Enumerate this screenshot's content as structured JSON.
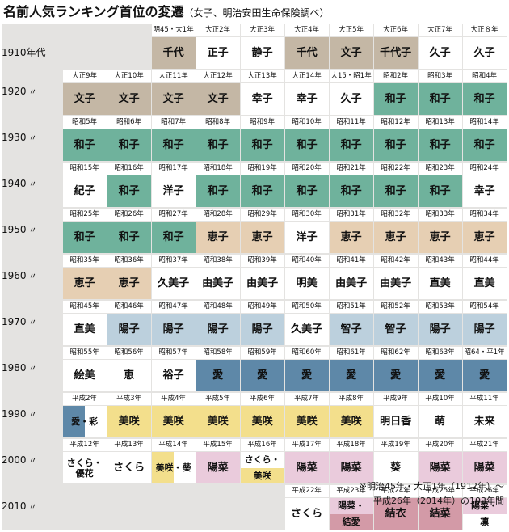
{
  "title": {
    "main": "名前人気ランキング首位の変遷",
    "sub": "（女子、明治安田生命保険調べ）"
  },
  "colors": {
    "taupe": "#c4b7a5",
    "white": "#ffffff",
    "green": "#6fb29c",
    "peach": "#e6cfb3",
    "lightblue": "#bcd0dd",
    "blue": "#5e88a8",
    "yellow": "#f3df8c",
    "pink": "#eacbdc",
    "rose": "#d39aa7",
    "board": "#e4e3e1"
  },
  "rows": [
    {
      "decade": "1910年代",
      "marker": "",
      "cells": [
        {
          "era": "明45・大1年",
          "name": "千代",
          "color": "taupe"
        },
        {
          "era": "大正2年",
          "name": "正子",
          "color": "white"
        },
        {
          "era": "大正3年",
          "name": "静子",
          "color": "white"
        },
        {
          "era": "大正4年",
          "name": "千代",
          "color": "taupe"
        },
        {
          "era": "大正5年",
          "name": "文子",
          "color": "taupe"
        },
        {
          "era": "大正6年",
          "name": "千代子",
          "color": "taupe"
        },
        {
          "era": "大正7年",
          "name": "久子",
          "color": "white"
        },
        {
          "era": "大正８年",
          "name": "久子",
          "color": "white"
        }
      ]
    },
    {
      "decade": "1920",
      "marker": "〃",
      "cells": [
        {
          "era": "大正9年",
          "name": "文子",
          "color": "taupe"
        },
        {
          "era": "大正10年",
          "name": "文子",
          "color": "taupe"
        },
        {
          "era": "大正11年",
          "name": "文子",
          "color": "taupe"
        },
        {
          "era": "大正12年",
          "name": "文子",
          "color": "taupe"
        },
        {
          "era": "大正13年",
          "name": "幸子",
          "color": "white"
        },
        {
          "era": "大正14年",
          "name": "幸子",
          "color": "white"
        },
        {
          "era": "大15・昭1年",
          "name": "久子",
          "color": "white"
        },
        {
          "era": "昭和2年",
          "name": "和子",
          "color": "green"
        },
        {
          "era": "昭和3年",
          "name": "和子",
          "color": "green"
        },
        {
          "era": "昭和4年",
          "name": "和子",
          "color": "green"
        }
      ]
    },
    {
      "decade": "1930",
      "marker": "〃",
      "cells": [
        {
          "era": "昭和5年",
          "name": "和子",
          "color": "green"
        },
        {
          "era": "昭和6年",
          "name": "和子",
          "color": "green"
        },
        {
          "era": "昭和7年",
          "name": "和子",
          "color": "green"
        },
        {
          "era": "昭和8年",
          "name": "和子",
          "color": "green"
        },
        {
          "era": "昭和9年",
          "name": "和子",
          "color": "green"
        },
        {
          "era": "昭和10年",
          "name": "和子",
          "color": "green"
        },
        {
          "era": "昭和11年",
          "name": "和子",
          "color": "green"
        },
        {
          "era": "昭和12年",
          "name": "和子",
          "color": "green"
        },
        {
          "era": "昭和13年",
          "name": "和子",
          "color": "green"
        },
        {
          "era": "昭和14年",
          "name": "和子",
          "color": "green"
        }
      ]
    },
    {
      "decade": "1940",
      "marker": "〃",
      "cells": [
        {
          "era": "昭和15年",
          "name": "紀子",
          "color": "white"
        },
        {
          "era": "昭和16年",
          "name": "和子",
          "color": "green"
        },
        {
          "era": "昭和17年",
          "name": "洋子",
          "color": "white"
        },
        {
          "era": "昭和18年",
          "name": "和子",
          "color": "green"
        },
        {
          "era": "昭和19年",
          "name": "和子",
          "color": "green"
        },
        {
          "era": "昭和20年",
          "name": "和子",
          "color": "green"
        },
        {
          "era": "昭和21年",
          "name": "和子",
          "color": "green"
        },
        {
          "era": "昭和22年",
          "name": "和子",
          "color": "green"
        },
        {
          "era": "昭和23年",
          "name": "和子",
          "color": "green"
        },
        {
          "era": "昭和24年",
          "name": "幸子",
          "color": "white"
        }
      ]
    },
    {
      "decade": "1950",
      "marker": "〃",
      "cells": [
        {
          "era": "昭和25年",
          "name": "和子",
          "color": "green"
        },
        {
          "era": "昭和26年",
          "name": "和子",
          "color": "green"
        },
        {
          "era": "昭和27年",
          "name": "和子",
          "color": "green"
        },
        {
          "era": "昭和28年",
          "name": "恵子",
          "color": "peach"
        },
        {
          "era": "昭和29年",
          "name": "恵子",
          "color": "peach"
        },
        {
          "era": "昭和30年",
          "name": "洋子",
          "color": "white"
        },
        {
          "era": "昭和31年",
          "name": "恵子",
          "color": "peach"
        },
        {
          "era": "昭和32年",
          "name": "恵子",
          "color": "peach"
        },
        {
          "era": "昭和33年",
          "name": "恵子",
          "color": "peach"
        },
        {
          "era": "昭和34年",
          "name": "恵子",
          "color": "peach"
        }
      ]
    },
    {
      "decade": "1960",
      "marker": "〃",
      "cells": [
        {
          "era": "昭和35年",
          "name": "恵子",
          "color": "peach"
        },
        {
          "era": "昭和36年",
          "name": "恵子",
          "color": "peach"
        },
        {
          "era": "昭和37年",
          "name": "久美子",
          "color": "white"
        },
        {
          "era": "昭和38年",
          "name": "由美子",
          "color": "white"
        },
        {
          "era": "昭和39年",
          "name": "由美子",
          "color": "white"
        },
        {
          "era": "昭和40年",
          "name": "明美",
          "color": "white"
        },
        {
          "era": "昭和41年",
          "name": "由美子",
          "color": "white"
        },
        {
          "era": "昭和42年",
          "name": "由美子",
          "color": "white"
        },
        {
          "era": "昭和43年",
          "name": "直美",
          "color": "white"
        },
        {
          "era": "昭和44年",
          "name": "直美",
          "color": "white"
        }
      ]
    },
    {
      "decade": "1970",
      "marker": "〃",
      "cells": [
        {
          "era": "昭和45年",
          "name": "直美",
          "color": "white"
        },
        {
          "era": "昭和46年",
          "name": "陽子",
          "color": "lightblue"
        },
        {
          "era": "昭和47年",
          "name": "陽子",
          "color": "lightblue"
        },
        {
          "era": "昭和48年",
          "name": "陽子",
          "color": "lightblue"
        },
        {
          "era": "昭和49年",
          "name": "陽子",
          "color": "lightblue"
        },
        {
          "era": "昭和50年",
          "name": "久美子",
          "color": "white"
        },
        {
          "era": "昭和51年",
          "name": "智子",
          "color": "lightblue"
        },
        {
          "era": "昭和52年",
          "name": "智子",
          "color": "lightblue"
        },
        {
          "era": "昭和53年",
          "name": "陽子",
          "color": "lightblue"
        },
        {
          "era": "昭和54年",
          "name": "陽子",
          "color": "lightblue"
        }
      ]
    },
    {
      "decade": "1980",
      "marker": "〃",
      "cells": [
        {
          "era": "昭和55年",
          "name": "絵美",
          "color": "white"
        },
        {
          "era": "昭和56年",
          "name": "恵",
          "color": "white"
        },
        {
          "era": "昭和57年",
          "name": "裕子",
          "color": "white"
        },
        {
          "era": "昭和58年",
          "name": "愛",
          "color": "blue"
        },
        {
          "era": "昭和59年",
          "name": "愛",
          "color": "blue"
        },
        {
          "era": "昭和60年",
          "name": "愛",
          "color": "blue"
        },
        {
          "era": "昭和61年",
          "name": "愛",
          "color": "blue"
        },
        {
          "era": "昭和62年",
          "name": "愛",
          "color": "blue"
        },
        {
          "era": "昭和63年",
          "name": "愛",
          "color": "blue"
        },
        {
          "era": "昭64・平1年",
          "name": "愛",
          "color": "blue"
        }
      ]
    },
    {
      "decade": "1990",
      "marker": "〃",
      "cells": [
        {
          "era": "平成2年",
          "name": "愛・彩",
          "color": "blue",
          "color2": "white",
          "split": "h",
          "parts": [
            "愛",
            "・彩"
          ]
        },
        {
          "era": "平成3年",
          "name": "美咲",
          "color": "yellow"
        },
        {
          "era": "平成4年",
          "name": "美咲",
          "color": "yellow"
        },
        {
          "era": "平成5年",
          "name": "美咲",
          "color": "yellow"
        },
        {
          "era": "平成6年",
          "name": "美咲",
          "color": "yellow"
        },
        {
          "era": "平成7年",
          "name": "美咲",
          "color": "yellow"
        },
        {
          "era": "平成8年",
          "name": "美咲",
          "color": "yellow"
        },
        {
          "era": "平成9年",
          "name": "明日香",
          "color": "white"
        },
        {
          "era": "平成10年",
          "name": "萌",
          "color": "white"
        },
        {
          "era": "平成11年",
          "name": "未来",
          "color": "white"
        }
      ]
    },
    {
      "decade": "2000",
      "marker": "〃",
      "cells": [
        {
          "era": "平成12年",
          "name": "さくら・優花",
          "color": "white",
          "lines": [
            "さくら・",
            "優花"
          ]
        },
        {
          "era": "平成13年",
          "name": "さくら",
          "color": "white"
        },
        {
          "era": "平成14年",
          "name": "美咲・葵",
          "color": "yellow",
          "color2": "white",
          "split": "h",
          "parts": [
            "美咲",
            "・葵"
          ]
        },
        {
          "era": "平成15年",
          "name": "陽菜",
          "color": "pink"
        },
        {
          "era": "平成16年",
          "name": "さくら・美咲",
          "color": "white",
          "color2": "yellow",
          "split": "v",
          "parts": [
            "さくら・",
            "美咲"
          ]
        },
        {
          "era": "平成17年",
          "name": "陽菜",
          "color": "pink"
        },
        {
          "era": "平成18年",
          "name": "陽菜",
          "color": "pink"
        },
        {
          "era": "平成19年",
          "name": "葵",
          "color": "white"
        },
        {
          "era": "平成20年",
          "name": "陽菜",
          "color": "pink"
        },
        {
          "era": "平成21年",
          "name": "陽菜",
          "color": "pink"
        }
      ]
    },
    {
      "decade": "2010",
      "marker": "〃",
      "cells": [
        {
          "era": "平成22年",
          "name": "さくら",
          "color": "white"
        },
        {
          "era": "平成23年",
          "name": "陽菜・結愛",
          "color": "pink",
          "color2": "rose",
          "split": "v",
          "parts": [
            "陽菜・",
            "結愛"
          ]
        },
        {
          "era": "平成24年",
          "name": "結衣",
          "color": "rose"
        },
        {
          "era": "平成25年",
          "name": "結菜",
          "color": "rose"
        },
        {
          "era": "平成26年",
          "name": "陽菜・凛",
          "color": "pink",
          "color2": "white",
          "split": "v",
          "parts": [
            "陽菜・",
            "凛"
          ]
        }
      ]
    }
  ],
  "note": {
    "line1": "※明治45年・大正1年（1912年）〜",
    "line2": "平成26年（2014年）の103年間"
  }
}
